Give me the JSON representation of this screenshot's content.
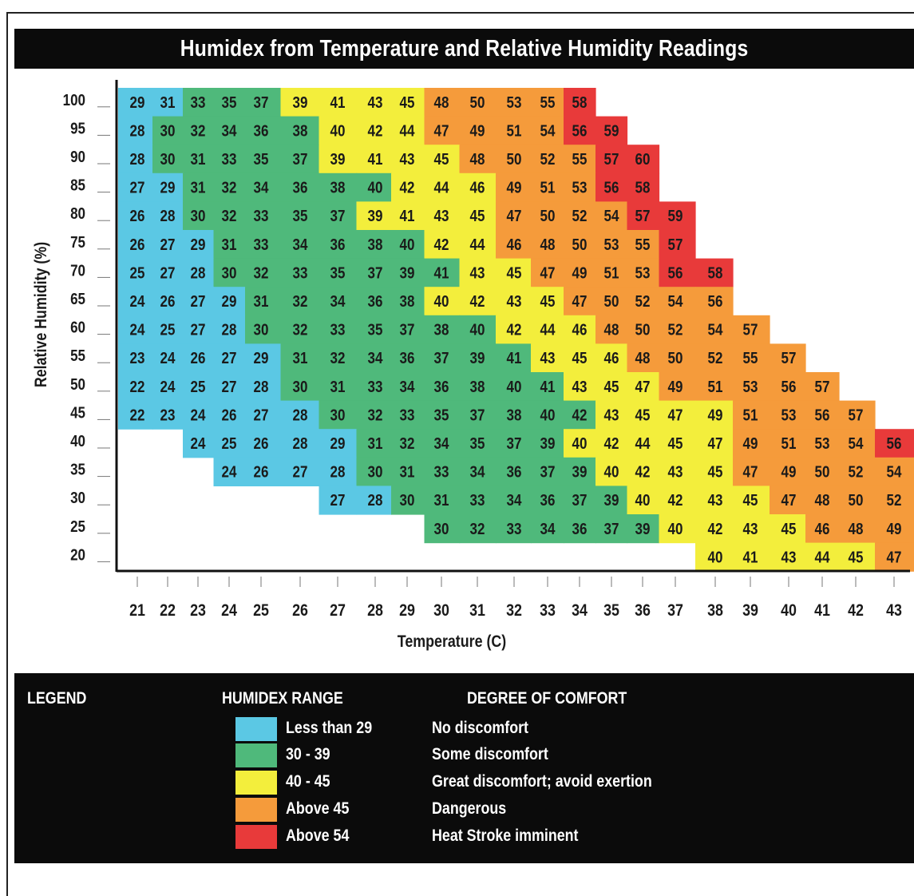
{
  "title": "Humidex from Temperature and Relative Humidity Readings",
  "colors": {
    "blue": "#5bc8e4",
    "green": "#4fb97b",
    "yellow": "#f3ee3c",
    "orange": "#f59b3b",
    "red": "#e83a3a",
    "background": "#0b0b0b"
  },
  "chart_data": {
    "type": "heatmap",
    "title": "Humidex from Temperature and Relative Humidity Readings",
    "xlabel": "Temperature (C)",
    "ylabel": "Relative Humidity (%)",
    "x": [
      21,
      22,
      23,
      24,
      25,
      26,
      27,
      28,
      29,
      30,
      31,
      32,
      33,
      34,
      35,
      36,
      37,
      38,
      39,
      40,
      41,
      42,
      43
    ],
    "y": [
      100,
      95,
      90,
      85,
      80,
      75,
      70,
      65,
      60,
      55,
      50,
      45,
      40,
      35,
      30,
      25,
      20
    ],
    "values": [
      [
        29,
        31,
        33,
        35,
        37,
        39,
        41,
        43,
        45,
        48,
        50,
        53,
        55,
        58,
        null,
        null,
        null,
        null,
        null,
        null,
        null,
        null,
        null
      ],
      [
        28,
        30,
        32,
        34,
        36,
        38,
        40,
        42,
        44,
        47,
        49,
        51,
        54,
        56,
        59,
        null,
        null,
        null,
        null,
        null,
        null,
        null,
        null
      ],
      [
        28,
        30,
        31,
        33,
        35,
        37,
        39,
        41,
        43,
        45,
        48,
        50,
        52,
        55,
        57,
        60,
        null,
        null,
        null,
        null,
        null,
        null,
        null
      ],
      [
        27,
        29,
        31,
        32,
        34,
        36,
        38,
        40,
        42,
        44,
        46,
        49,
        51,
        53,
        56,
        58,
        null,
        null,
        null,
        null,
        null,
        null,
        null
      ],
      [
        26,
        28,
        30,
        32,
        33,
        35,
        37,
        39,
        41,
        43,
        45,
        47,
        50,
        52,
        54,
        57,
        59,
        null,
        null,
        null,
        null,
        null,
        null
      ],
      [
        26,
        27,
        29,
        31,
        33,
        34,
        36,
        38,
        40,
        42,
        44,
        46,
        48,
        50,
        53,
        55,
        57,
        null,
        null,
        null,
        null,
        null,
        null
      ],
      [
        25,
        27,
        28,
        30,
        32,
        33,
        35,
        37,
        39,
        41,
        43,
        45,
        47,
        49,
        51,
        53,
        56,
        58,
        null,
        null,
        null,
        null,
        null
      ],
      [
        24,
        26,
        27,
        29,
        31,
        32,
        34,
        36,
        38,
        40,
        42,
        43,
        45,
        47,
        50,
        52,
        54,
        56,
        null,
        null,
        null,
        null,
        null
      ],
      [
        24,
        25,
        27,
        28,
        30,
        32,
        33,
        35,
        37,
        38,
        40,
        42,
        44,
        46,
        48,
        50,
        52,
        54,
        57,
        null,
        null,
        null,
        null
      ],
      [
        23,
        24,
        26,
        27,
        29,
        31,
        32,
        34,
        36,
        37,
        39,
        41,
        43,
        45,
        46,
        48,
        50,
        52,
        55,
        57,
        null,
        null,
        null
      ],
      [
        22,
        24,
        25,
        27,
        28,
        30,
        31,
        33,
        34,
        36,
        38,
        40,
        41,
        43,
        45,
        47,
        49,
        51,
        53,
        56,
        57,
        null,
        null
      ],
      [
        22,
        23,
        24,
        26,
        27,
        28,
        30,
        32,
        33,
        35,
        37,
        38,
        40,
        42,
        43,
        45,
        47,
        49,
        51,
        53,
        56,
        57,
        null
      ],
      [
        null,
        null,
        24,
        25,
        26,
        28,
        29,
        31,
        32,
        34,
        35,
        37,
        39,
        40,
        42,
        44,
        45,
        47,
        49,
        51,
        53,
        54,
        56
      ],
      [
        null,
        null,
        null,
        24,
        26,
        27,
        28,
        30,
        31,
        33,
        34,
        36,
        37,
        39,
        40,
        42,
        43,
        45,
        47,
        49,
        50,
        52,
        54
      ],
      [
        null,
        null,
        null,
        null,
        null,
        null,
        27,
        28,
        30,
        31,
        33,
        34,
        36,
        37,
        39,
        40,
        42,
        43,
        45,
        47,
        48,
        50,
        52
      ],
      [
        null,
        null,
        null,
        null,
        null,
        null,
        null,
        null,
        null,
        30,
        32,
        33,
        34,
        36,
        37,
        39,
        40,
        42,
        43,
        45,
        46,
        48,
        49
      ],
      [
        null,
        null,
        null,
        null,
        null,
        null,
        null,
        null,
        null,
        null,
        null,
        null,
        null,
        null,
        null,
        null,
        null,
        40,
        41,
        43,
        44,
        45,
        47
      ]
    ],
    "cell_colors": [
      "bbgggyyyyoooor",
      "bgggggyyyoooorr",
      "bgggggyyyyoooorr",
      "bbggggggyyyooorr",
      "bbgggggyyyyoooorr",
      "bbbggggggyyooooor",
      "bbbgggggggyyoooorr",
      "bbbbgggggyyyyooooor",
      "bbbbgggggggyyyooooor",
      "bbbbbgggggggyyyoooooorr",
      "bbbbbggggggggyyyooooorr",
      "bbbbbbggggggggyyyyoooorr",
      "  bbbbbggggggyyyyyoooor",
      "   bbbbgggggggyyyyooooo",
      "      bbgggggggyyyyoooo",
      "         gggggggyyyyoooo",
      "                 yyyyyo"
    ]
  },
  "legend": {
    "title": "LEGEND",
    "range_header": "HUMIDEX RANGE",
    "comfort_header": "DEGREE OF COMFORT",
    "items": [
      {
        "color": "#5bc8e4",
        "range": "Less than 29",
        "comfort": "No discomfort"
      },
      {
        "color": "#4fb97b",
        "range": "30 - 39",
        "comfort": "Some discomfort"
      },
      {
        "color": "#f3ee3c",
        "range": "40 - 45",
        "comfort": "Great discomfort; avoid exertion"
      },
      {
        "color": "#f59b3b",
        "range": "Above 45",
        "comfort": "Dangerous"
      },
      {
        "color": "#e83a3a",
        "range": "Above 54",
        "comfort": "Heat Stroke imminent"
      }
    ]
  }
}
